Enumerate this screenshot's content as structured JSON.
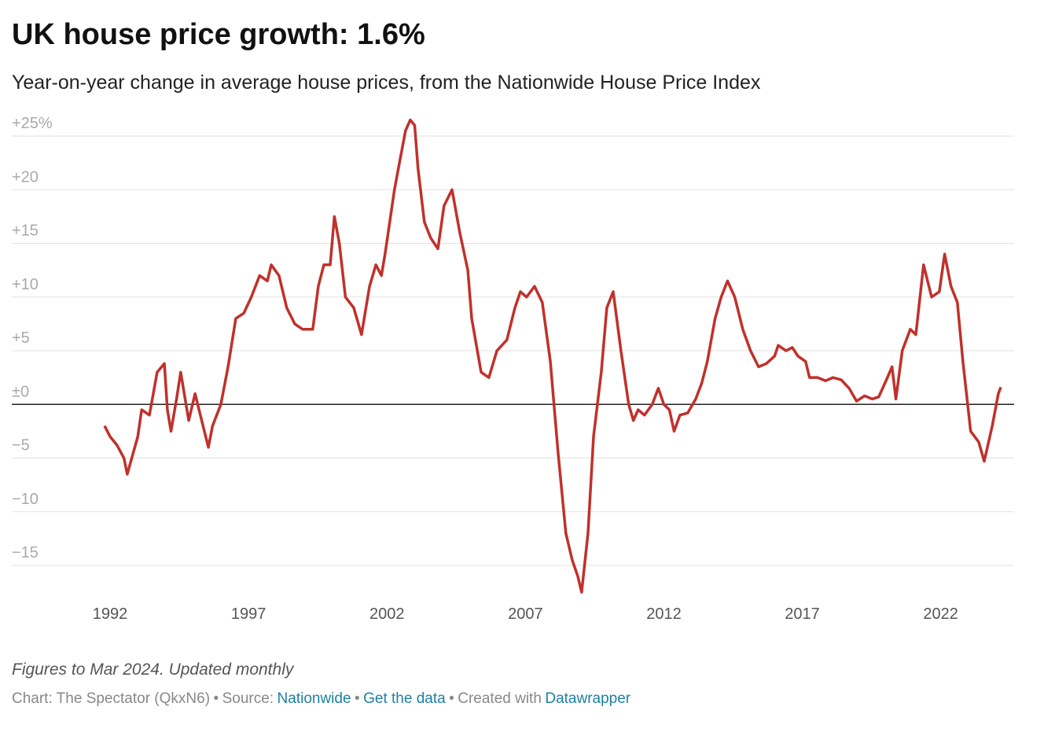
{
  "chart_data": {
    "type": "line",
    "title": "UK house price growth: 1.6%",
    "subtitle": "Year-on-year change in average house prices, from the Nationwide House Price Index",
    "note": "Figures to Mar 2024. Updated monthly",
    "credits": {
      "chart": "Chart: The Spectator (QkxN6)",
      "separator": "•",
      "source": "Source:",
      "source_link": "Nationwide",
      "data_link": "Get the data",
      "created": "Created with",
      "tool_link": "Datawrapper"
    },
    "x": [
      1991.8,
      1992.0,
      1992.25,
      1992.5,
      1992.62,
      1993.0,
      1993.14,
      1993.42,
      1993.7,
      1993.96,
      1994.07,
      1994.2,
      1994.4,
      1994.55,
      1994.84,
      1995.07,
      1995.26,
      1995.55,
      1995.7,
      1996.0,
      1996.26,
      1996.54,
      1996.83,
      1997.1,
      1997.4,
      1997.68,
      1997.82,
      1998.1,
      1998.38,
      1998.67,
      1998.95,
      1999.32,
      1999.52,
      1999.72,
      1999.95,
      2000.1,
      2000.28,
      2000.5,
      2000.8,
      2001.08,
      2001.37,
      2001.6,
      2001.8,
      2001.93,
      2002.1,
      2002.27,
      2002.45,
      2002.67,
      2002.84,
      2003.0,
      2003.12,
      2003.35,
      2003.58,
      2003.84,
      2004.06,
      2004.35,
      2004.63,
      2004.92,
      2005.06,
      2005.4,
      2005.68,
      2005.97,
      2006.33,
      2006.62,
      2006.82,
      2007.04,
      2007.33,
      2007.61,
      2007.9,
      2008.18,
      2008.46,
      2008.69,
      2008.89,
      2009.03,
      2009.26,
      2009.46,
      2009.74,
      2009.94,
      2010.17,
      2010.45,
      2010.73,
      2010.9,
      2011.07,
      2011.3,
      2011.58,
      2011.8,
      2012.0,
      2012.2,
      2012.37,
      2012.58,
      2012.86,
      2013.15,
      2013.37,
      2013.57,
      2013.85,
      2014.07,
      2014.3,
      2014.56,
      2014.85,
      2015.13,
      2015.42,
      2015.7,
      2016.0,
      2016.13,
      2016.41,
      2016.64,
      2016.84,
      2017.12,
      2017.26,
      2017.55,
      2017.84,
      2018.11,
      2018.4,
      2018.69,
      2018.96,
      2019.25,
      2019.53,
      2019.76,
      2020.04,
      2020.24,
      2020.38,
      2020.61,
      2020.9,
      2021.1,
      2021.38,
      2021.67,
      2021.95,
      2022.14,
      2022.37,
      2022.6,
      2022.8,
      2023.08,
      2023.37,
      2023.57,
      2023.86,
      2024.08,
      2024.17
    ],
    "series": [
      {
        "name": "Year-on-year change",
        "color": "#c0312b",
        "values": [
          -2.0,
          -3.0,
          -3.8,
          -5.0,
          -6.5,
          -3.0,
          -0.5,
          -1.0,
          3.0,
          3.8,
          -0.5,
          -2.5,
          0.5,
          3.0,
          -1.5,
          1.0,
          -1.0,
          -4.0,
          -2.0,
          0.0,
          3.5,
          8.0,
          8.5,
          10.0,
          12.0,
          11.5,
          13.0,
          12.0,
          9.0,
          7.5,
          7.0,
          7.0,
          11.0,
          13.0,
          13.0,
          17.5,
          15.0,
          10.0,
          9.0,
          6.5,
          11.0,
          13.0,
          12.0,
          14.0,
          17.0,
          20.0,
          22.5,
          25.5,
          26.5,
          26.0,
          22.0,
          17.0,
          15.5,
          14.5,
          18.5,
          20.0,
          16.0,
          12.5,
          8.0,
          3.0,
          2.5,
          5.0,
          6.0,
          9.0,
          10.5,
          10.0,
          11.0,
          9.5,
          4.0,
          -4.5,
          -12.0,
          -14.5,
          -16.0,
          -17.5,
          -12.0,
          -3.0,
          3.0,
          9.0,
          10.5,
          5.0,
          0.0,
          -1.5,
          -0.5,
          -1.0,
          0.0,
          1.5,
          0.0,
          -0.5,
          -2.5,
          -1.0,
          -0.8,
          0.5,
          2.0,
          4.0,
          8.0,
          10.0,
          11.5,
          10.0,
          7.0,
          5.0,
          3.5,
          3.8,
          4.5,
          5.5,
          5.0,
          5.3,
          4.5,
          4.0,
          2.5,
          2.5,
          2.2,
          2.5,
          2.3,
          1.5,
          0.3,
          0.8,
          0.5,
          0.7,
          2.3,
          3.5,
          0.5,
          5.0,
          7.0,
          6.5,
          13.0,
          10.0,
          10.5,
          14.0,
          11.0,
          9.5,
          4.0,
          -2.5,
          -3.5,
          -5.3,
          -2.0,
          1.0,
          1.6
        ]
      }
    ],
    "xlim": [
      1988.45,
      2024.65
    ],
    "xticks": [
      1992,
      1997,
      2002,
      2007,
      2012,
      2017,
      2022
    ],
    "ylim": [
      -18,
      25
    ],
    "yticks": [
      {
        "value": 25,
        "label": "+25%"
      },
      {
        "value": 20,
        "label": "+20"
      },
      {
        "value": 15,
        "label": "+15"
      },
      {
        "value": 10,
        "label": "+10"
      },
      {
        "value": 5,
        "label": "+5"
      },
      {
        "value": 0,
        "label": "±0"
      },
      {
        "value": -5,
        "label": "−5"
      },
      {
        "value": -10,
        "label": "−10"
      },
      {
        "value": -15,
        "label": "−15"
      }
    ],
    "grid": true
  }
}
